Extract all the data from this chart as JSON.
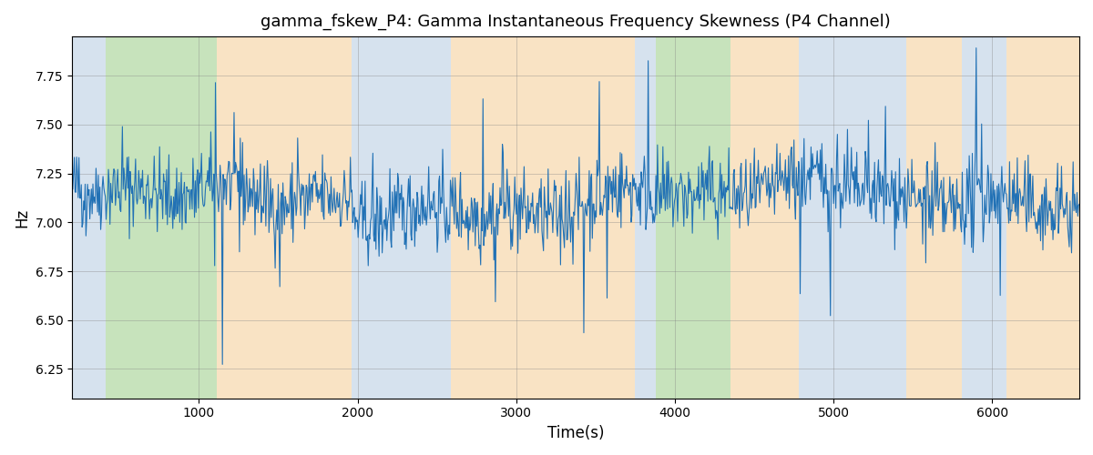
{
  "title": "gamma_fskew_P4: Gamma Instantaneous Frequency Skewness (P4 Channel)",
  "xlabel": "Time(s)",
  "ylabel": "Hz",
  "xlim": [
    200,
    6550
  ],
  "ylim": [
    6.1,
    7.95
  ],
  "line_color": "#2171b5",
  "line_width": 0.8,
  "bg_bands": [
    {
      "xmin": 200,
      "xmax": 415,
      "color": "#aec6de",
      "alpha": 0.5
    },
    {
      "xmin": 415,
      "xmax": 1110,
      "color": "#90c97a",
      "alpha": 0.5
    },
    {
      "xmin": 1110,
      "xmax": 1960,
      "color": "#f5c98a",
      "alpha": 0.5
    },
    {
      "xmin": 1960,
      "xmax": 2590,
      "color": "#aec6de",
      "alpha": 0.5
    },
    {
      "xmin": 2590,
      "xmax": 3750,
      "color": "#f5c98a",
      "alpha": 0.5
    },
    {
      "xmin": 3750,
      "xmax": 3880,
      "color": "#aec6de",
      "alpha": 0.5
    },
    {
      "xmin": 3880,
      "xmax": 4350,
      "color": "#90c97a",
      "alpha": 0.5
    },
    {
      "xmin": 4350,
      "xmax": 4480,
      "color": "#f5c98a",
      "alpha": 0.5
    },
    {
      "xmin": 4480,
      "xmax": 4780,
      "color": "#f5c98a",
      "alpha": 0.5
    },
    {
      "xmin": 4780,
      "xmax": 5460,
      "color": "#aec6de",
      "alpha": 0.5
    },
    {
      "xmin": 5460,
      "xmax": 5810,
      "color": "#f5c98a",
      "alpha": 0.5
    },
    {
      "xmin": 5810,
      "xmax": 6090,
      "color": "#aec6de",
      "alpha": 0.5
    },
    {
      "xmin": 6090,
      "xmax": 6550,
      "color": "#f5c98a",
      "alpha": 0.5
    }
  ],
  "yticks": [
    6.25,
    6.5,
    6.75,
    7.0,
    7.25,
    7.5,
    7.75
  ],
  "xticks": [
    1000,
    2000,
    3000,
    4000,
    5000,
    6000
  ],
  "seed": 42,
  "n_points": 1300,
  "t_start": 200,
  "t_end": 6550
}
